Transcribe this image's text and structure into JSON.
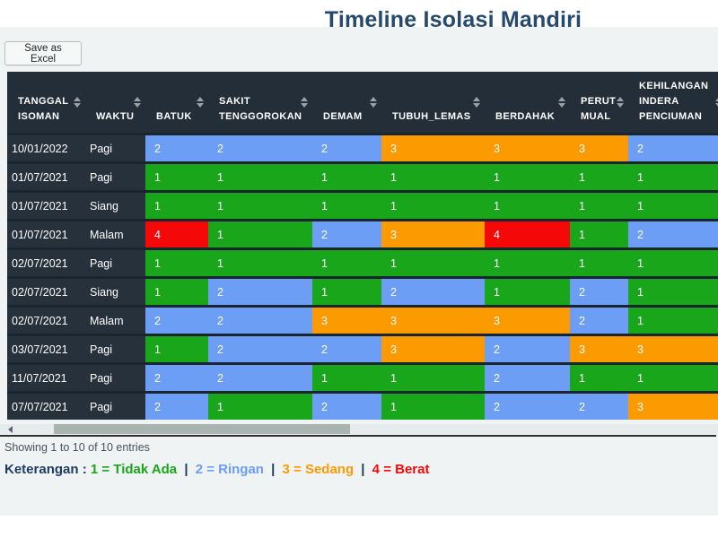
{
  "header": {
    "title_regular": "Timeline",
    "title_bold": "Isolasi Mandiri"
  },
  "toolbar": {
    "save_excel_label": "Save as Excel"
  },
  "table": {
    "columns": [
      {
        "id": "tanggal-isoman",
        "label": "TANGGAL ISOMAN",
        "lines": [
          "TANGGAL",
          "ISOMAN"
        ]
      },
      {
        "id": "waktu",
        "label": "WAKTU",
        "lines": [
          "WAKTU"
        ]
      },
      {
        "id": "batuk",
        "label": "BATUK",
        "lines": [
          "BATUK"
        ]
      },
      {
        "id": "sakit-tenggorokan",
        "label": "SAKIT TENGGOROKAN",
        "lines": [
          "SAKIT",
          "TENGGOROKAN"
        ]
      },
      {
        "id": "demam",
        "label": "DEMAM",
        "lines": [
          "DEMAM"
        ]
      },
      {
        "id": "tubuh-lemas",
        "label": "TUBUH_LEMAS",
        "lines": [
          "TUBUH_LEMAS"
        ]
      },
      {
        "id": "berdahak",
        "label": "BERDAHAK",
        "lines": [
          "BERDAHAK"
        ]
      },
      {
        "id": "perut-mual",
        "label": "PERUT MUAL",
        "lines": [
          "PERUT",
          "MUAL"
        ]
      },
      {
        "id": "kehilangan-indera-penciuman",
        "label": "KEHILANGAN INDERA PENCIUMAN",
        "lines": [
          "KEHILANGAN",
          "INDERA",
          "PENCIUMAN"
        ]
      }
    ],
    "rows": [
      {
        "tanggal": "10/01/2022",
        "waktu": "Pagi",
        "values": [
          2,
          2,
          2,
          3,
          3,
          3,
          2
        ]
      },
      {
        "tanggal": "01/07/2021",
        "waktu": "Pagi",
        "values": [
          1,
          1,
          1,
          1,
          1,
          1,
          1
        ]
      },
      {
        "tanggal": "01/07/2021",
        "waktu": "Siang",
        "values": [
          1,
          1,
          1,
          1,
          1,
          1,
          1
        ]
      },
      {
        "tanggal": "01/07/2021",
        "waktu": "Malam",
        "values": [
          4,
          1,
          2,
          3,
          4,
          1,
          2
        ]
      },
      {
        "tanggal": "02/07/2021",
        "waktu": "Pagi",
        "values": [
          1,
          1,
          1,
          1,
          1,
          1,
          1
        ]
      },
      {
        "tanggal": "02/07/2021",
        "waktu": "Siang",
        "values": [
          1,
          2,
          1,
          2,
          1,
          2,
          1
        ]
      },
      {
        "tanggal": "02/07/2021",
        "waktu": "Malam",
        "values": [
          2,
          2,
          3,
          3,
          3,
          2,
          1
        ]
      },
      {
        "tanggal": "03/07/2021",
        "waktu": "Pagi",
        "values": [
          1,
          2,
          2,
          3,
          2,
          3,
          3
        ]
      },
      {
        "tanggal": "11/07/2021",
        "waktu": "Pagi",
        "values": [
          2,
          2,
          1,
          1,
          2,
          1,
          1
        ]
      },
      {
        "tanggal": "07/07/2021",
        "waktu": "Pagi",
        "values": [
          2,
          1,
          2,
          1,
          2,
          2,
          3
        ]
      }
    ]
  },
  "severity_colors": {
    "1": "#1aa61a",
    "2": "#6c9ef5",
    "3": "#fc9a02",
    "4": "#f50808"
  },
  "footer": {
    "showing_text": "Showing 1 to 10 of 10 entries"
  },
  "legend": {
    "prefix": "Keterangan :",
    "separator": "|",
    "items": [
      {
        "text": "1 = Tidak Ada",
        "color": "#1aa61a"
      },
      {
        "text": "2 = Ringan",
        "color": "#6c9ef5"
      },
      {
        "text": "3 = Sedang",
        "color": "#fc9a02"
      },
      {
        "text": "4 = Berat",
        "color": "#f50808"
      }
    ]
  }
}
